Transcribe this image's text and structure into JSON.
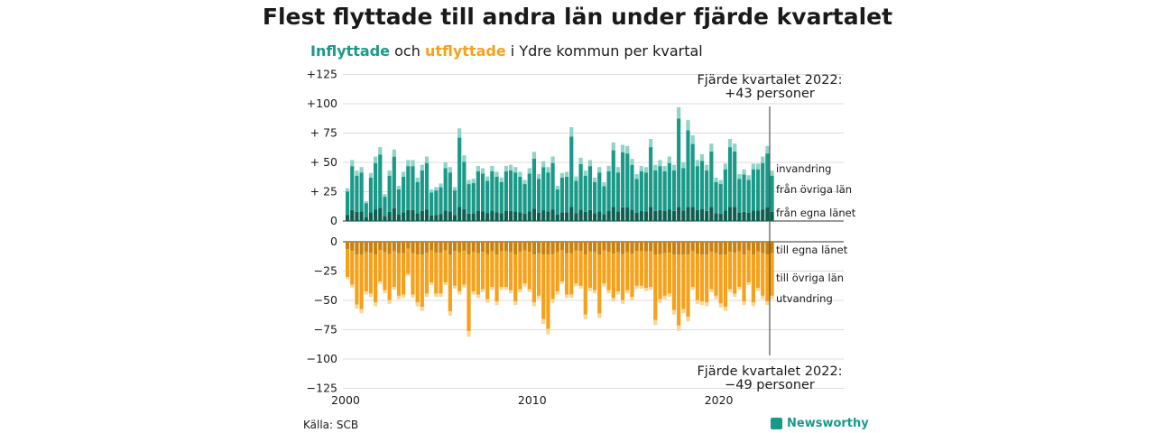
{
  "title": "Flest flyttade till andra län under fjärde kvartalet",
  "subtitle": {
    "in_word": "Inflyttade",
    "and_word": "och",
    "out_word": "utflyttade",
    "rest": "i Ydre kommun per kvartal"
  },
  "source": "Källa: SCB",
  "brand": "Newsworthy",
  "colors": {
    "inflow_own_county": "#0f5e52",
    "inflow_other_counties": "#1a9988",
    "immigration": "#8fd4c7",
    "outflow_own_county": "#c9820f",
    "outflow_other_counties": "#f5a11a",
    "emigration": "#fad697",
    "brand": "#1a9988"
  },
  "chart_data": {
    "type": "bar",
    "stacked": true,
    "x_ticks": [
      "2000",
      "2010",
      "2020"
    ],
    "y_ticks_top": [
      "+125",
      "+100",
      "+ 75",
      "+ 50",
      "+ 25",
      "0"
    ],
    "y_ticks_bottom": [
      "0",
      "−25",
      "−50",
      "−75",
      "−100",
      "−125"
    ],
    "ylim": [
      -125,
      125
    ],
    "grid": true,
    "x": [
      "2000 Q1",
      "2000 Q2",
      "2000 Q3",
      "2000 Q4",
      "2001 Q1",
      "2001 Q2",
      "2001 Q3",
      "2001 Q4",
      "2002 Q1",
      "2002 Q2",
      "2002 Q3",
      "2002 Q4",
      "2003 Q1",
      "2003 Q2",
      "2003 Q3",
      "2003 Q4",
      "2004 Q1",
      "2004 Q2",
      "2004 Q3",
      "2004 Q4",
      "2005 Q1",
      "2005 Q2",
      "2005 Q3",
      "2005 Q4",
      "2006 Q1",
      "2006 Q2",
      "2006 Q3",
      "2006 Q4",
      "2007 Q1",
      "2007 Q2",
      "2007 Q3",
      "2007 Q4",
      "2008 Q1",
      "2008 Q2",
      "2008 Q3",
      "2008 Q4",
      "2009 Q1",
      "2009 Q2",
      "2009 Q3",
      "2009 Q4",
      "2010 Q1",
      "2010 Q2",
      "2010 Q3",
      "2010 Q4",
      "2011 Q1",
      "2011 Q2",
      "2011 Q3",
      "2011 Q4",
      "2012 Q1",
      "2012 Q2",
      "2012 Q3",
      "2012 Q4",
      "2013 Q1",
      "2013 Q2",
      "2013 Q3",
      "2013 Q4",
      "2014 Q1",
      "2014 Q2",
      "2014 Q3",
      "2014 Q4",
      "2015 Q1",
      "2015 Q2",
      "2015 Q3",
      "2015 Q4",
      "2016 Q1",
      "2016 Q2",
      "2016 Q3",
      "2016 Q4",
      "2017 Q1",
      "2017 Q2",
      "2017 Q3",
      "2017 Q4",
      "2018 Q1",
      "2018 Q2",
      "2018 Q3",
      "2018 Q4",
      "2019 Q1",
      "2019 Q2",
      "2019 Q3",
      "2019 Q4",
      "2020 Q1",
      "2020 Q2",
      "2020 Q3",
      "2020 Q4",
      "2021 Q1",
      "2021 Q2",
      "2021 Q3",
      "2021 Q4",
      "2022 Q1",
      "2022 Q2",
      "2022 Q3",
      "2022 Q4"
    ],
    "inflow_totals": [
      28,
      52,
      43,
      46,
      17,
      41,
      55,
      63,
      23,
      43,
      61,
      30,
      42,
      52,
      52,
      37,
      48,
      55,
      27,
      29,
      32,
      50,
      46,
      29,
      79,
      56,
      35,
      36,
      47,
      45,
      38,
      47,
      42,
      37,
      47,
      48,
      46,
      42,
      35,
      45,
      59,
      40,
      51,
      46,
      55,
      30,
      41,
      42,
      80,
      38,
      54,
      43,
      52,
      37,
      46,
      33,
      47,
      67,
      46,
      65,
      64,
      53,
      40,
      47,
      46,
      70,
      48,
      52,
      47,
      55,
      48,
      97,
      50,
      86,
      73,
      52,
      57,
      48,
      66,
      37,
      35,
      49,
      70,
      66,
      40,
      44,
      39,
      49,
      49,
      55,
      64,
      43
    ],
    "outflow_totals": [
      -32,
      -39,
      -57,
      -61,
      -45,
      -47,
      -55,
      -36,
      -44,
      -53,
      -41,
      -49,
      -48,
      -29,
      -48,
      -55,
      -59,
      -47,
      -37,
      -47,
      -47,
      -37,
      -63,
      -40,
      -45,
      -39,
      -81,
      -45,
      -48,
      -43,
      -52,
      -41,
      -54,
      -41,
      -41,
      -44,
      -54,
      -43,
      -38,
      -43,
      -55,
      -49,
      -70,
      -79,
      -52,
      -45,
      -36,
      -48,
      -48,
      -38,
      -40,
      -66,
      -42,
      -44,
      -65,
      -38,
      -44,
      -51,
      -45,
      -53,
      -44,
      -50,
      -40,
      -40,
      -42,
      -41,
      -71,
      -52,
      -49,
      -47,
      -62,
      -76,
      -61,
      -68,
      -41,
      -53,
      -54,
      -55,
      -43,
      -49,
      -56,
      -59,
      -43,
      -47,
      -41,
      -54,
      -37,
      -55,
      -42,
      -49,
      -54,
      -49
    ],
    "inflow_labels": [
      "invandring",
      "från övriga län",
      "från egna länet"
    ],
    "outflow_labels": [
      "till egna länet",
      "till övriga län",
      "utvandring"
    ],
    "annotation_top": [
      "Fjärde kvartalet 2022:",
      "+43 personer"
    ],
    "annotation_bottom": [
      "Fjärde kvartalet 2022:",
      "−49 personer"
    ]
  }
}
